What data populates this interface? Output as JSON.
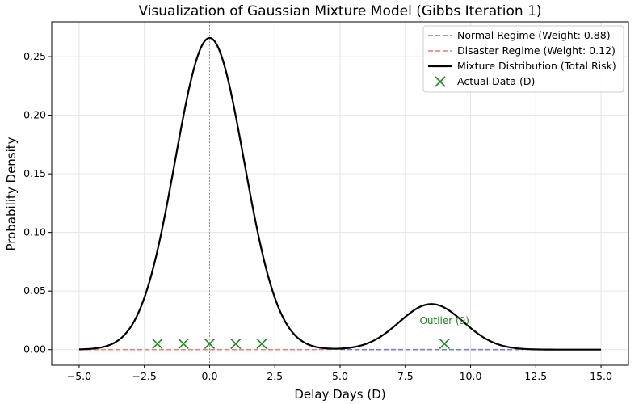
{
  "chart_data": {
    "type": "line",
    "title": "Visualization of Gaussian Mixture Model (Gibbs Iteration 1)",
    "xlabel": "Delay Days (D)",
    "ylabel": "Probability Density",
    "xlim": [
      -6.05,
      16.05
    ],
    "ylim": [
      -0.0133,
      0.2797
    ],
    "xticks": [
      -5.0,
      -2.5,
      0.0,
      2.5,
      5.0,
      7.5,
      10.0,
      12.5,
      15.0
    ],
    "xtick_labels": [
      "−5.0",
      "−2.5",
      "0.0",
      "2.5",
      "5.0",
      "7.5",
      "10.0",
      "12.5",
      "15.0"
    ],
    "yticks": [
      0.0,
      0.05,
      0.1,
      0.15,
      0.2,
      0.25
    ],
    "ytick_labels": [
      "0.00",
      "0.05",
      "0.10",
      "0.15",
      "0.20",
      "0.25"
    ],
    "grid": true,
    "legend_position": "upper right",
    "vertical_reference_x": 0,
    "series": [
      {
        "name": "Normal Regime (Weight: 0.88)",
        "style": "dashed",
        "color": "#7070ff",
        "gaussian": {
          "weight": 0.88,
          "mean": 0,
          "sd": 1.32
        },
        "x_range": [
          5,
          12
        ]
      },
      {
        "name": "Disaster Regime (Weight: 0.12)",
        "style": "dashed",
        "color": "#ff7070",
        "gaussian": {
          "weight": 0.12,
          "mean": 8.5,
          "sd": 1.23
        },
        "x_range": [
          -5,
          5
        ]
      },
      {
        "name": "Mixture Distribution (Total Risk)",
        "style": "solid",
        "color": "#000000",
        "mixture": true,
        "x_range": [
          -5,
          15
        ]
      }
    ],
    "scatter": {
      "name": "Actual Data (D)",
      "marker": "x",
      "color": "#1a8a1a",
      "x": [
        -2,
        -1,
        0,
        1,
        2,
        9
      ],
      "y": [
        0.005,
        0.005,
        0.005,
        0.005,
        0.005,
        0.005
      ]
    },
    "annotations": [
      {
        "text": "Outlier (9)",
        "x": 9,
        "y": 0.022,
        "color": "#1a8a1a"
      }
    ]
  }
}
